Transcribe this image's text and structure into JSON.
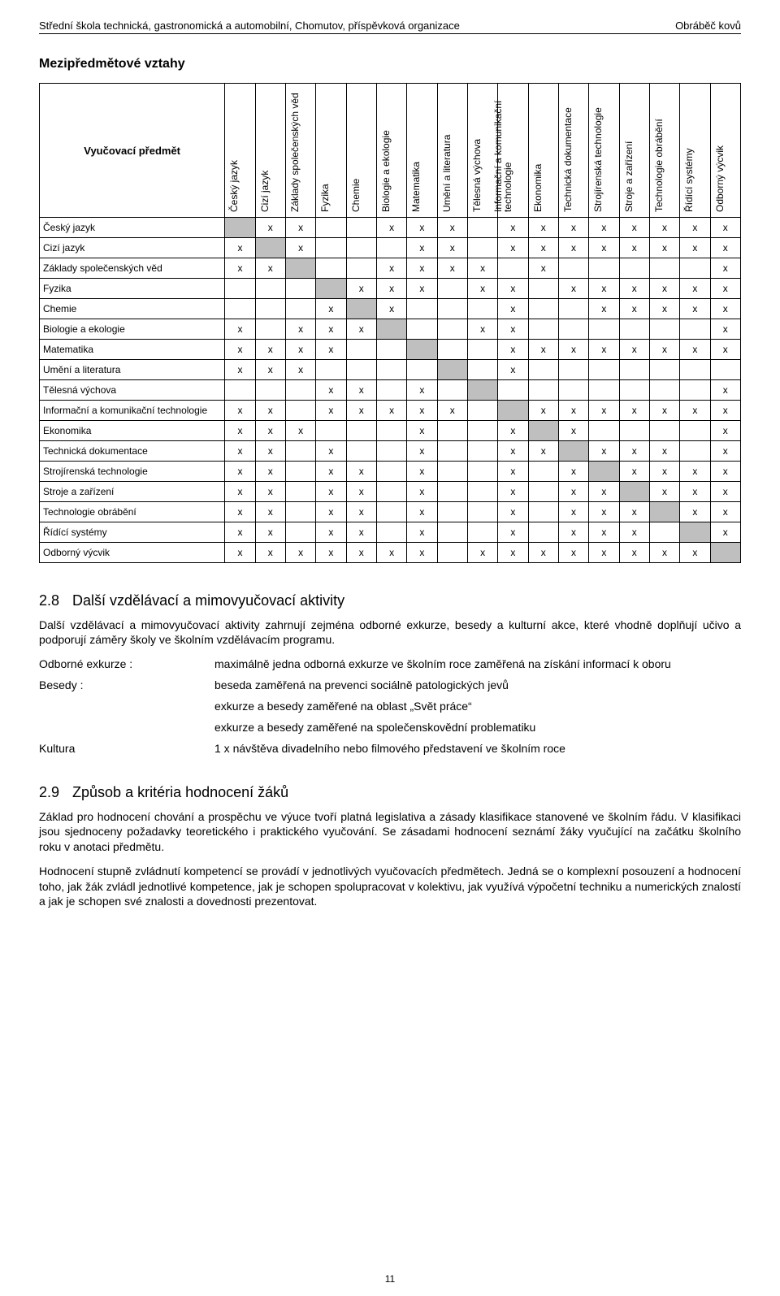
{
  "header": {
    "left": "Střední škola technická, gastronomická a automobilní, Chomutov, příspěvková organizace",
    "right": "Obráběč kovů"
  },
  "matrix": {
    "section_title": "Mezipředmětové vztahy",
    "corner_label": "Vyučovací předmět",
    "columns": [
      "Český jazyk",
      "Cizí jazyk",
      "Základy společenských věd",
      "Fyzika",
      "Chemie",
      "Biologie a ekologie",
      "Matematika",
      "Umění a literatura",
      "Tělesná výchova",
      "Informační a komunikační|technologie",
      "Ekonomika",
      "Technická dokumentace",
      "Strojírenská technologie",
      "Stroje a zařízení",
      "Technologie obrábění",
      "Řídící systémy",
      "Odborný výcvik"
    ],
    "rows": [
      "Český jazyk",
      "Cizí jazyk",
      "Základy společenských věd",
      "Fyzika",
      "Chemie",
      "Biologie a ekologie",
      "Matematika",
      "Umění a literatura",
      "Tělesná výchova",
      "Informační a komunikační technologie",
      "Ekonomika",
      "Technická dokumentace",
      "Strojírenská technologie",
      "Stroje a zařízení",
      "Technologie obrábění",
      "Řídící systémy",
      "Odborný výcvik"
    ],
    "marks": [
      [
        0,
        1,
        1,
        0,
        0,
        1,
        1,
        1,
        0,
        1,
        1,
        1,
        1,
        1,
        1,
        1,
        1
      ],
      [
        1,
        0,
        1,
        0,
        0,
        0,
        1,
        1,
        0,
        1,
        1,
        1,
        1,
        1,
        1,
        1,
        1
      ],
      [
        1,
        1,
        0,
        0,
        0,
        1,
        1,
        1,
        1,
        0,
        1,
        0,
        0,
        0,
        0,
        0,
        1
      ],
      [
        0,
        0,
        0,
        0,
        1,
        1,
        1,
        0,
        1,
        1,
        0,
        1,
        1,
        1,
        1,
        1,
        1
      ],
      [
        0,
        0,
        0,
        1,
        0,
        1,
        0,
        0,
        0,
        1,
        0,
        0,
        1,
        1,
        1,
        1,
        1
      ],
      [
        1,
        0,
        1,
        1,
        1,
        0,
        0,
        0,
        1,
        1,
        0,
        0,
        0,
        0,
        0,
        0,
        1
      ],
      [
        1,
        1,
        1,
        1,
        0,
        0,
        0,
        0,
        0,
        1,
        1,
        1,
        1,
        1,
        1,
        1,
        1
      ],
      [
        1,
        1,
        1,
        0,
        0,
        0,
        0,
        0,
        0,
        1,
        0,
        0,
        0,
        0,
        0,
        0,
        0
      ],
      [
        0,
        0,
        0,
        1,
        1,
        0,
        1,
        0,
        0,
        0,
        0,
        0,
        0,
        0,
        0,
        0,
        1
      ],
      [
        1,
        1,
        0,
        1,
        1,
        1,
        1,
        1,
        0,
        0,
        1,
        1,
        1,
        1,
        1,
        1,
        1
      ],
      [
        1,
        1,
        1,
        0,
        0,
        0,
        1,
        0,
        0,
        1,
        0,
        1,
        0,
        0,
        0,
        0,
        1
      ],
      [
        1,
        1,
        0,
        1,
        0,
        0,
        1,
        0,
        0,
        1,
        1,
        0,
        1,
        1,
        1,
        0,
        1
      ],
      [
        1,
        1,
        0,
        1,
        1,
        0,
        1,
        0,
        0,
        1,
        0,
        1,
        0,
        1,
        1,
        1,
        1
      ],
      [
        1,
        1,
        0,
        1,
        1,
        0,
        1,
        0,
        0,
        1,
        0,
        1,
        1,
        0,
        1,
        1,
        1
      ],
      [
        1,
        1,
        0,
        1,
        1,
        0,
        1,
        0,
        0,
        1,
        0,
        1,
        1,
        1,
        0,
        1,
        1
      ],
      [
        1,
        1,
        0,
        1,
        1,
        0,
        1,
        0,
        0,
        1,
        0,
        1,
        1,
        1,
        0,
        0,
        1
      ],
      [
        1,
        1,
        1,
        1,
        1,
        1,
        1,
        0,
        1,
        1,
        1,
        1,
        1,
        1,
        1,
        1,
        0
      ]
    ],
    "mark_char": "x",
    "diag_color": "#bfbfbf"
  },
  "section28": {
    "num": "2.8",
    "title": "Další vzdělávací a mimovyučovací aktivity",
    "para": "Další vzdělávací a mimovyučovací aktivity zahrnují zejména odborné exkurze, besedy a kulturní akce, které vhodně doplňují učivo a podporují záměry školy ve školním vzdělávacím programu.",
    "items": [
      {
        "term": "Odborné exkurze :",
        "defs": [
          "maximálně jedna odborná exkurze ve školním roce zaměřená na získání informací k oboru"
        ]
      },
      {
        "term": "Besedy :",
        "defs": [
          "beseda zaměřená na prevenci sociálně patologických jevů",
          "exkurze a besedy zaměřené na oblast „Svět práce“",
          "exkurze a besedy zaměřené na společenskovědní problematiku"
        ]
      },
      {
        "term": "Kultura",
        "defs": [
          "1 x návštěva divadelního nebo filmového představení ve školním roce"
        ]
      }
    ]
  },
  "section29": {
    "num": "2.9",
    "title": "Způsob  a kritéria hodnocení žáků",
    "paras": [
      "Základ pro hodnocení chování a prospěchu ve výuce tvoří platná legislativa a zásady klasifikace stanovené ve školním řádu. V klasifikaci jsou sjednoceny požadavky teoretického i praktického vyučování. Se zásadami hodnocení seznámí žáky vyučující na začátku školního roku v anotaci předmětu.",
      "Hodnocení stupně zvládnutí kompetencí se provádí v jednotlivých vyučovacích předmětech. Jedná se o komplexní posouzení a hodnocení toho, jak žák zvládl jednotlivé kompetence, jak je schopen spolupracovat v kolektivu, jak využívá výpočetní techniku a numerických znalostí a jak je schopen své znalosti a dovednosti prezentovat."
    ]
  },
  "page_number": "11"
}
